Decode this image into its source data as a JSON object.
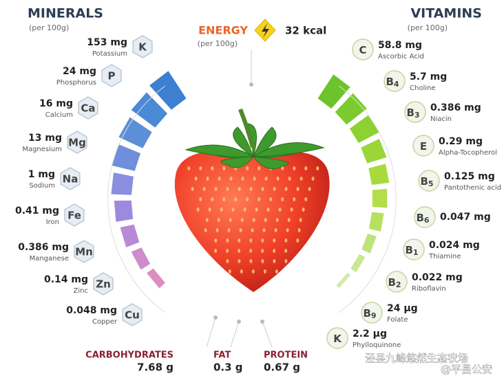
{
  "header": {
    "minerals_title": "MINERALS",
    "minerals_sub": "(per 100g)",
    "vitamins_title": "VITAMINS",
    "vitamins_sub": "(per 100g)"
  },
  "energy": {
    "label": "ENERGY",
    "sub": "(per 100g)",
    "value": "32 kcal"
  },
  "minerals": [
    {
      "amount": "153 mg",
      "name": "Potassium",
      "symbol": "K"
    },
    {
      "amount": "24 mg",
      "name": "Phosphorus",
      "symbol": "P"
    },
    {
      "amount": "16 mg",
      "name": "Calcium",
      "symbol": "Ca"
    },
    {
      "amount": "13 mg",
      "name": "Magnesium",
      "symbol": "Mg"
    },
    {
      "amount": "1 mg",
      "name": "Sodium",
      "symbol": "Na"
    },
    {
      "amount": "0.41 mg",
      "name": "Iron",
      "symbol": "Fe"
    },
    {
      "amount": "0.386 mg",
      "name": "Manganese",
      "symbol": "Mn"
    },
    {
      "amount": "0.14 mg",
      "name": "Zinc",
      "symbol": "Zn"
    },
    {
      "amount": "0.048 mg",
      "name": "Copper",
      "symbol": "Cu"
    }
  ],
  "vitamins": [
    {
      "symbol": "C",
      "amount": "58.8 mg",
      "name": "Ascorbic Acid"
    },
    {
      "symbol": "B",
      "index": "4",
      "amount": "5.7 mg",
      "name": "Choline"
    },
    {
      "symbol": "B",
      "index": "3",
      "amount": "0.386 mg",
      "name": "Niacin"
    },
    {
      "symbol": "E",
      "amount": "0.29 mg",
      "name": "Alpha-Tocopherol"
    },
    {
      "symbol": "B",
      "index": "5",
      "amount": "0.125 mg",
      "name": "Pantothenic acid"
    },
    {
      "symbol": "B",
      "index": "6",
      "amount": "0.047 mg"
    },
    {
      "symbol": "B",
      "index": "1",
      "amount": "0.024 mg",
      "name": "Thiamine"
    },
    {
      "symbol": "B",
      "index": "2",
      "amount": "0.022 mg",
      "name": "Riboflavin"
    },
    {
      "symbol": "B",
      "index": "9",
      "amount": "24 µg",
      "name": "Folate"
    },
    {
      "symbol": "K",
      "amount": "2.2 µg",
      "name": "Phylloquinone"
    }
  ],
  "macros": [
    {
      "label": "CARBOHYDRATES",
      "value": "7.68 g"
    },
    {
      "label": "FAT",
      "value": "0.3 g"
    },
    {
      "label": "PROTEIN",
      "value": "0.67 g"
    }
  ],
  "watermark": {
    "left": "泾县九峰悠然生态农场",
    "right": "@平昌公安"
  }
}
